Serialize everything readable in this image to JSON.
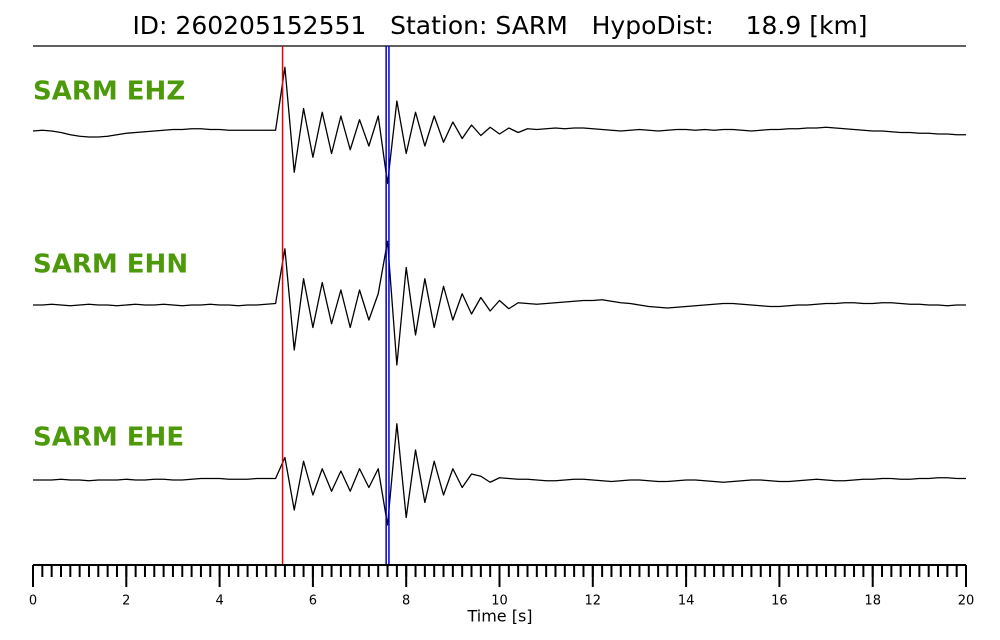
{
  "chart_data": {
    "type": "line",
    "title": "ID: 260205152551   Station: SARM   HypoDist:    18.9 [km]",
    "xlabel": "Time [s]",
    "xlim": [
      0,
      20
    ],
    "xticks": [
      0,
      2,
      4,
      6,
      8,
      10,
      12,
      14,
      16,
      18,
      20
    ],
    "xminorticks": [
      0,
      0.2,
      0.4,
      0.6,
      0.8,
      1,
      1.2,
      1.4,
      1.6,
      1.8,
      2,
      2.2,
      2.4,
      2.6,
      2.8,
      3,
      3.2,
      3.4,
      3.6,
      3.8,
      4,
      4.2,
      4.4,
      4.6,
      4.8,
      5,
      5.2,
      5.4,
      5.6,
      5.8,
      6,
      6.2,
      6.4,
      6.6,
      6.8,
      7,
      7.2,
      7.4,
      7.6,
      7.8,
      8,
      8.2,
      8.4,
      8.6,
      8.8,
      9,
      9.2,
      9.4,
      9.6,
      9.8,
      10,
      10.2,
      10.4,
      10.6,
      10.8,
      11,
      11.2,
      11.4,
      11.6,
      11.8,
      12,
      12.2,
      12.4,
      12.6,
      12.8,
      13,
      13.2,
      13.4,
      13.6,
      13.8,
      14,
      14.2,
      14.4,
      14.6,
      14.8,
      15,
      15.2,
      15.4,
      15.6,
      15.8,
      16,
      16.2,
      16.4,
      16.6,
      16.8,
      17,
      17.2,
      17.4,
      17.6,
      17.8,
      18,
      18.2,
      18.4,
      18.6,
      18.8,
      19,
      19.2,
      19.4,
      19.6,
      19.8,
      20
    ],
    "ylim": [
      -1,
      1
    ],
    "x": [
      0,
      0.2,
      0.4,
      0.6,
      0.8,
      1,
      1.2,
      1.4,
      1.6,
      1.8,
      2,
      2.2,
      2.4,
      2.6,
      2.8,
      3,
      3.2,
      3.4,
      3.6,
      3.8,
      4,
      4.2,
      4.4,
      4.6,
      4.8,
      5,
      5.2,
      5.4,
      5.6,
      5.8,
      6,
      6.2,
      6.4,
      6.6,
      6.8,
      7,
      7.2,
      7.4,
      7.6,
      7.8,
      8,
      8.2,
      8.4,
      8.6,
      8.8,
      9,
      9.2,
      9.4,
      9.6,
      9.8,
      10,
      10.2,
      10.4,
      10.6,
      10.8,
      11,
      11.2,
      11.4,
      11.6,
      11.8,
      12,
      12.2,
      12.4,
      12.6,
      12.8,
      13,
      13.2,
      13.4,
      13.6,
      13.8,
      14,
      14.2,
      14.4,
      14.6,
      14.8,
      15,
      15.2,
      15.4,
      15.6,
      15.8,
      16,
      16.2,
      16.4,
      16.6,
      16.8,
      17,
      17.2,
      17.4,
      17.6,
      17.8,
      18,
      18.2,
      18.4,
      18.6,
      18.8,
      19,
      19.2,
      19.4,
      19.6,
      19.8,
      20
    ],
    "label_color": "#4c9a0a",
    "series": [
      {
        "name": "SARM EHZ",
        "color": "#000000",
        "values": [
          0,
          0.01,
          0,
          -0.02,
          -0.05,
          -0.07,
          -0.08,
          -0.08,
          -0.07,
          -0.05,
          -0.03,
          -0.02,
          -0.01,
          0,
          0.01,
          0.02,
          0.02,
          0.03,
          0.03,
          0.02,
          0.02,
          0.01,
          0.01,
          0.01,
          0.01,
          0.01,
          0.01,
          0.85,
          -0.55,
          0.3,
          -0.35,
          0.25,
          -0.3,
          0.2,
          -0.25,
          0.15,
          -0.2,
          0.2,
          -0.7,
          0.4,
          -0.3,
          0.25,
          -0.2,
          0.2,
          -0.15,
          0.12,
          -0.1,
          0.08,
          -0.06,
          0.05,
          -0.04,
          0.04,
          -0.02,
          0.03,
          0.02,
          0.03,
          0.04,
          0.03,
          0.04,
          0.04,
          0.03,
          0.02,
          0.01,
          0,
          0.01,
          0.02,
          0.01,
          0,
          0.01,
          0.02,
          0.02,
          0.01,
          0.02,
          0.01,
          0.02,
          0.02,
          0.01,
          0,
          0.01,
          0.02,
          0.02,
          0.03,
          0.03,
          0.04,
          0.04,
          0.05,
          0.04,
          0.03,
          0.02,
          0.01,
          0,
          0,
          -0.01,
          -0.02,
          -0.02,
          -0.03,
          -0.03,
          -0.04,
          -0.04,
          -0.05,
          -0.05
        ]
      },
      {
        "name": "SARM EHN",
        "color": "#000000",
        "values": [
          0,
          0,
          0.01,
          0,
          -0.01,
          0,
          0.01,
          0,
          0,
          -0.01,
          0,
          0.01,
          0,
          0,
          0.01,
          0,
          -0.01,
          0,
          0,
          0.01,
          0,
          0,
          -0.01,
          0,
          0,
          0.01,
          0.02,
          0.75,
          -0.6,
          0.35,
          -0.3,
          0.3,
          -0.25,
          0.2,
          -0.3,
          0.2,
          -0.2,
          0.15,
          0.85,
          -0.8,
          0.5,
          -0.4,
          0.35,
          -0.3,
          0.25,
          -0.2,
          0.15,
          -0.12,
          0.1,
          -0.08,
          0.06,
          -0.05,
          0.03,
          0.02,
          0.01,
          0.02,
          0.03,
          0.04,
          0.05,
          0.06,
          0.06,
          0.07,
          0.05,
          0.03,
          0.02,
          0,
          -0.02,
          -0.03,
          -0.04,
          -0.03,
          -0.02,
          -0.01,
          0,
          0.01,
          0.02,
          0.02,
          0.01,
          0,
          -0.01,
          -0.02,
          -0.02,
          -0.01,
          0,
          0,
          0.01,
          0.02,
          0.02,
          0.03,
          0.03,
          0.02,
          0.02,
          0.03,
          0.03,
          0.02,
          0.01,
          0.01,
          0,
          0,
          -0.01,
          0,
          0
        ]
      },
      {
        "name": "SARM EHE",
        "color": "#000000",
        "values": [
          0,
          0,
          0,
          0.01,
          0,
          0,
          -0.01,
          0,
          0,
          0,
          0.01,
          0,
          0,
          0.01,
          0.01,
          0,
          0,
          0.01,
          0.02,
          0.02,
          0.02,
          0.01,
          0.01,
          0.01,
          0.02,
          0.02,
          0.02,
          0.3,
          -0.4,
          0.25,
          -0.2,
          0.15,
          -0.15,
          0.12,
          -0.15,
          0.15,
          -0.1,
          0.15,
          -0.6,
          0.75,
          -0.5,
          0.4,
          -0.3,
          0.25,
          -0.2,
          0.15,
          -0.1,
          0.08,
          0.05,
          -0.03,
          0.03,
          0.02,
          0.01,
          0.01,
          0,
          -0.01,
          -0.01,
          0,
          0.01,
          0.01,
          0,
          -0.01,
          -0.02,
          -0.01,
          0,
          0,
          -0.01,
          -0.02,
          -0.02,
          -0.01,
          0,
          0,
          -0.01,
          -0.02,
          -0.03,
          -0.02,
          -0.01,
          0,
          0,
          -0.01,
          -0.02,
          -0.02,
          -0.01,
          0,
          0.01,
          0,
          -0.01,
          -0.01,
          0,
          0.01,
          0.01,
          0.02,
          0.02,
          0.01,
          0.01,
          0.02,
          0.02,
          0.03,
          0.03,
          0.02,
          0.02
        ]
      }
    ],
    "markers": [
      {
        "x": 5.35,
        "color": "#e8000b"
      },
      {
        "x": 7.57,
        "color": "#0000cc"
      },
      {
        "x": 7.63,
        "color": "#0000cc"
      }
    ]
  }
}
